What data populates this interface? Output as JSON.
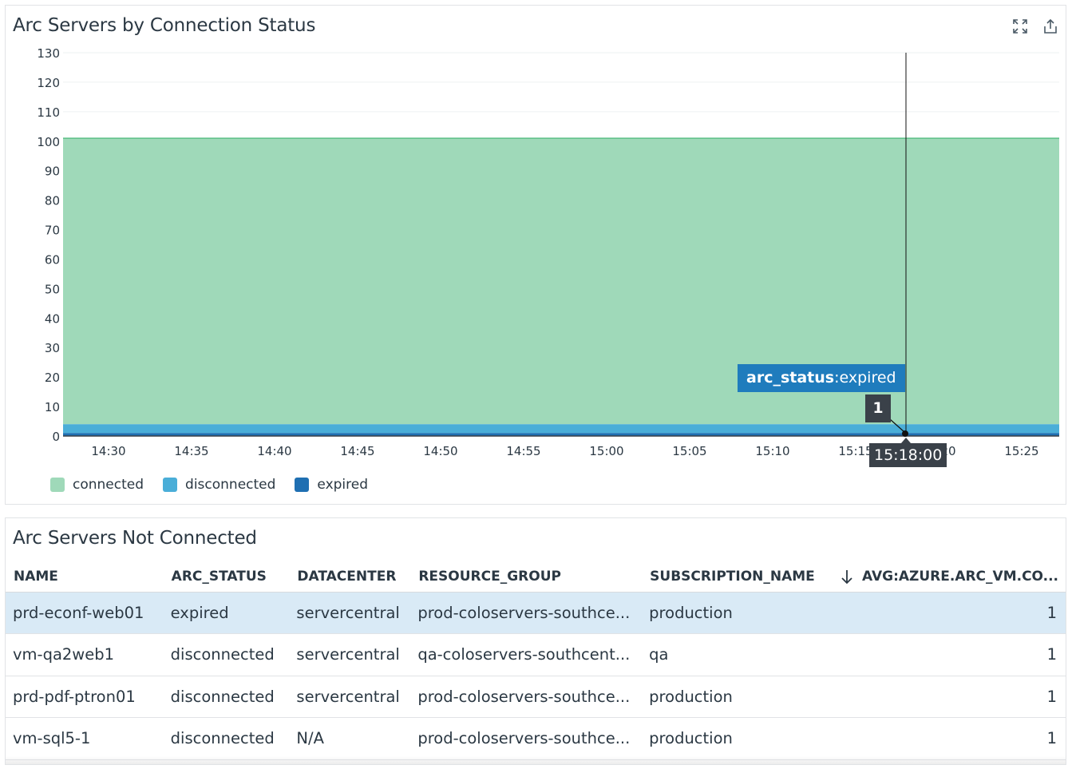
{
  "chart_widget": {
    "title": "Arc Servers by Connection Status",
    "expand_icon": "expand-icon",
    "export_icon": "export-icon",
    "tooltip": {
      "tag_key": "arc_status",
      "tag_sep": ":",
      "tag_value": "expired",
      "value": "1",
      "time": "15:18:00"
    },
    "legend": [
      {
        "label": "connected",
        "color": "#9fd9b9"
      },
      {
        "label": "disconnected",
        "color": "#4aaed8"
      },
      {
        "label": "expired",
        "color": "#1f6fb2"
      }
    ]
  },
  "chart_data": {
    "type": "area",
    "stacked": true,
    "title": "Arc Servers by Connection Status",
    "xlabel": "",
    "ylabel": "",
    "ylim": [
      0,
      130
    ],
    "yticks": [
      0,
      10,
      20,
      30,
      40,
      50,
      60,
      70,
      80,
      90,
      100,
      110,
      120,
      130
    ],
    "x": [
      "14:30",
      "14:35",
      "14:40",
      "14:45",
      "14:50",
      "14:55",
      "15:00",
      "15:05",
      "15:10",
      "15:15",
      "15:20",
      "15:25"
    ],
    "series": [
      {
        "name": "expired",
        "color": "#1f6fb2",
        "values": [
          1,
          1,
          1,
          1,
          1,
          1,
          1,
          1,
          1,
          1,
          1,
          1
        ]
      },
      {
        "name": "disconnected",
        "color": "#4aaed8",
        "values": [
          3,
          3,
          3,
          3,
          3,
          3,
          3,
          3,
          3,
          3,
          3,
          3
        ]
      },
      {
        "name": "connected",
        "color": "#9fd9b9",
        "values": [
          97,
          97,
          97,
          97,
          97,
          97,
          97,
          97,
          97,
          97,
          97,
          97
        ]
      }
    ],
    "grid": true,
    "legend_position": "bottom-left",
    "annotation": {
      "series": "arc_status:expired",
      "x": "15:18:00",
      "value": 1
    }
  },
  "table_widget": {
    "title": "Arc Servers Not Connected",
    "columns": [
      "NAME",
      "ARC_STATUS",
      "DATACENTER",
      "RESOURCE_GROUP",
      "SUBSCRIPTION_NAME",
      "AVG:AZURE.ARC_VM.CO..."
    ],
    "sort_icon": "arrow-down-icon",
    "rows": [
      {
        "name": "prd-econf-web01",
        "arc_status": "expired",
        "datacenter": "servercentral",
        "resource_group": "prod-coloservers-southce...",
        "subscription": "production",
        "value": "1"
      },
      {
        "name": "vm-qa2web1",
        "arc_status": "disconnected",
        "datacenter": "servercentral",
        "resource_group": "qa-coloservers-southcent...",
        "subscription": "qa",
        "value": "1"
      },
      {
        "name": "prd-pdf-ptron01",
        "arc_status": "disconnected",
        "datacenter": "servercentral",
        "resource_group": "prod-coloservers-southce...",
        "subscription": "production",
        "value": "1"
      },
      {
        "name": "vm-sql5-1",
        "arc_status": "disconnected",
        "datacenter": "N/A",
        "resource_group": "prod-coloservers-southce...",
        "subscription": "production",
        "value": "1"
      }
    ]
  }
}
